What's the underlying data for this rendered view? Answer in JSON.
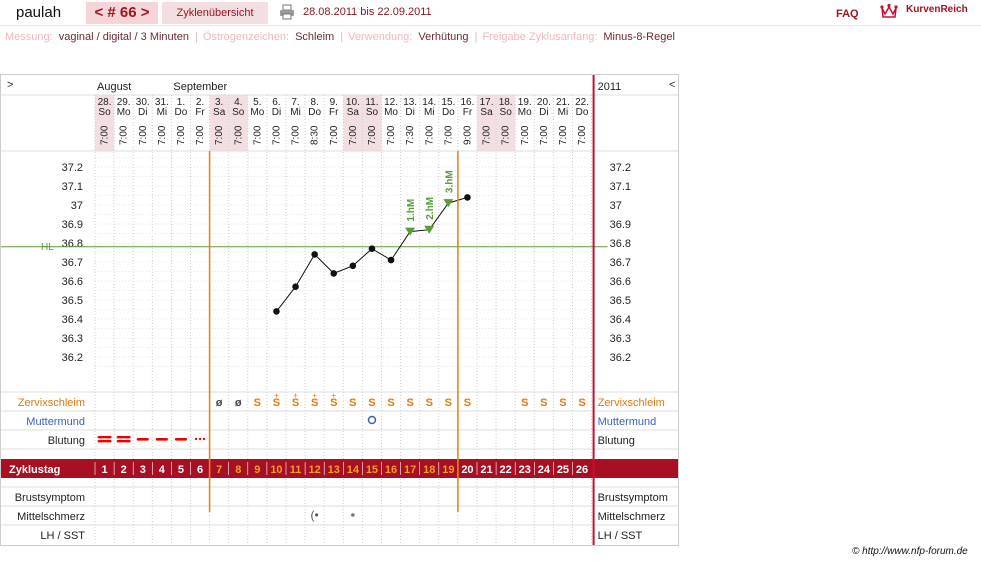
{
  "header": {
    "user": "paulah",
    "cycle_tab": "< # 66 >",
    "overview_tab": "Zyklenübersicht",
    "date_range": "28.08.2011 bis 22.09.2011",
    "faq": "FAQ",
    "brand": "KurvenReich"
  },
  "info": {
    "measurement_label": "Messung:",
    "measurement_value": "vaginal / digital / 3 Minuten",
    "estrogen_label": "Östrogenzeichen:",
    "estrogen_value": "Schleim",
    "usage_label": "Verwendung:",
    "usage_value": "Verhütung",
    "release_label": "Freigabe Zyklusanfang:",
    "release_value": "Minus-8-Regel"
  },
  "chart_data": {
    "type": "line",
    "year_label": "2011",
    "nav_left": ">",
    "nav_right": "<",
    "months": [
      {
        "label": "August",
        "at_day": 0
      },
      {
        "label": "September",
        "at_day": 4
      }
    ],
    "days": [
      {
        "date": "28.",
        "weekday": "So",
        "time": "7:00",
        "weekend": true
      },
      {
        "date": "29.",
        "weekday": "Mo",
        "time": "7:00",
        "weekend": false
      },
      {
        "date": "30.",
        "weekday": "Di",
        "time": "7:00",
        "weekend": false
      },
      {
        "date": "31.",
        "weekday": "Mi",
        "time": "7:00",
        "weekend": false
      },
      {
        "date": "1.",
        "weekday": "Do",
        "time": "7:00",
        "weekend": false
      },
      {
        "date": "2.",
        "weekday": "Fr",
        "time": "7:00",
        "weekend": false
      },
      {
        "date": "3.",
        "weekday": "Sa",
        "time": "7:00",
        "weekend": true
      },
      {
        "date": "4.",
        "weekday": "So",
        "time": "7:00",
        "weekend": true
      },
      {
        "date": "5.",
        "weekday": "Mo",
        "time": "7:00",
        "weekend": false
      },
      {
        "date": "6.",
        "weekday": "Di",
        "time": "7:00",
        "weekend": false
      },
      {
        "date": "7.",
        "weekday": "Mi",
        "time": "7:00",
        "weekend": false
      },
      {
        "date": "8.",
        "weekday": "Do",
        "time": "8:30",
        "weekend": false
      },
      {
        "date": "9.",
        "weekday": "Fr",
        "time": "7:00",
        "weekend": false
      },
      {
        "date": "10.",
        "weekday": "Sa",
        "time": "7:00",
        "weekend": true
      },
      {
        "date": "11.",
        "weekday": "So",
        "time": "7:00",
        "weekend": true
      },
      {
        "date": "12.",
        "weekday": "Mo",
        "time": "7:00",
        "weekend": false
      },
      {
        "date": "13.",
        "weekday": "Di",
        "time": "7:30",
        "weekend": false
      },
      {
        "date": "14.",
        "weekday": "Mi",
        "time": "7:00",
        "weekend": false
      },
      {
        "date": "15.",
        "weekday": "Do",
        "time": "7:00",
        "weekend": false
      },
      {
        "date": "16.",
        "weekday": "Fr",
        "time": "9:00",
        "weekend": false
      },
      {
        "date": "17.",
        "weekday": "Sa",
        "time": "7:00",
        "weekend": true
      },
      {
        "date": "18.",
        "weekday": "So",
        "time": "7:00",
        "weekend": true
      },
      {
        "date": "19.",
        "weekday": "Mo",
        "time": "7:00",
        "weekend": false
      },
      {
        "date": "20.",
        "weekday": "Di",
        "time": "7:00",
        "weekend": false
      },
      {
        "date": "21.",
        "weekday": "Mi",
        "time": "7:00",
        "weekend": false
      },
      {
        "date": "22.",
        "weekday": "Do",
        "time": "7:00",
        "weekend": false
      }
    ],
    "y_ticks": [
      "37.2",
      "37.1",
      "37",
      "36.9",
      "36.8",
      "36.7",
      "36.6",
      "36.5",
      "36.4",
      "36.3",
      "36.2"
    ],
    "ylim": [
      36.1,
      37.3
    ],
    "hl_label": "HL",
    "hl_value": 36.78,
    "temperatures": [
      {
        "day": 10,
        "value": 36.44
      },
      {
        "day": 11,
        "value": 36.57
      },
      {
        "day": 12,
        "value": 36.74
      },
      {
        "day": 13,
        "value": 36.64
      },
      {
        "day": 14,
        "value": 36.68
      },
      {
        "day": 15,
        "value": 36.77
      },
      {
        "day": 16,
        "value": 36.71
      },
      {
        "day": 17,
        "value": 36.86,
        "marker": "1.hM"
      },
      {
        "day": 18,
        "value": 36.87,
        "marker": "2.hM"
      },
      {
        "day": 19,
        "value": 37.01,
        "marker": "3.hM"
      },
      {
        "day": 20,
        "value": 37.04
      }
    ],
    "orange_lines_after_day": [
      6,
      19
    ],
    "cycle_label": "Zyklustag",
    "cycle_days": [
      "1",
      "2",
      "3",
      "4",
      "5",
      "6",
      "7",
      "8",
      "9",
      "10",
      "11",
      "12",
      "13",
      "14",
      "15",
      "16",
      "17",
      "18",
      "19",
      "20",
      "21",
      "22",
      "23",
      "24",
      "25",
      "26"
    ],
    "fertile_cycle_days": [
      7,
      19
    ],
    "rows": {
      "mucus_label": "Zervixschleim",
      "mucus": [
        "",
        "",
        "",
        "",
        "",
        "",
        "ø",
        "ø",
        "S",
        "S+",
        "S+",
        "S+",
        "S+",
        "S",
        "S",
        "S",
        "S",
        "S",
        "S",
        "S",
        "",
        "",
        "S",
        "S",
        "S",
        "S"
      ],
      "cervix_label": "Muttermund",
      "cervix_day": 15,
      "bleeding_label": "Blutung",
      "bleeding": [
        "heavy",
        "heavy",
        "medium",
        "medium",
        "medium",
        "light"
      ],
      "breast_label": "Brustsymptom",
      "midpain_label": "Mittelschmerz",
      "midpain_days": [
        12,
        14
      ],
      "lh_label": "LH / SST"
    }
  },
  "footer": {
    "copyright": "© http://www.nfp-forum.de"
  }
}
